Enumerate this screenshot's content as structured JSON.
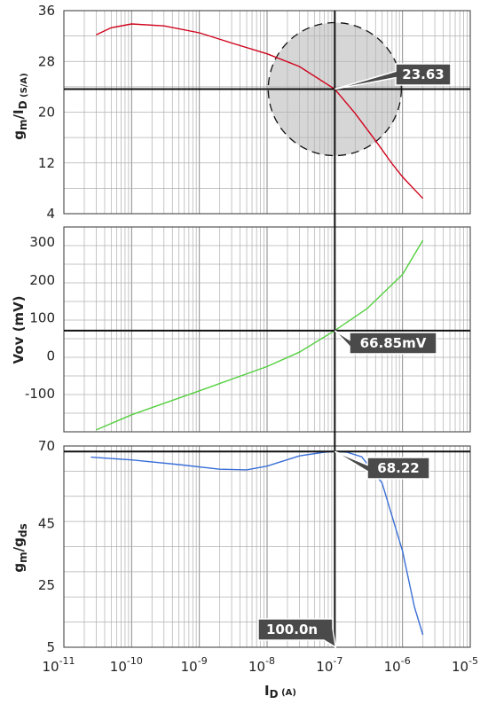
{
  "chart_data": [
    {
      "type": "line",
      "ylabel": "g",
      "ylabel_parts": [
        "g",
        "m",
        "/I",
        "D",
        " (S/A)"
      ],
      "ylim": [
        4,
        36
      ],
      "yticks": [
        "36",
        "28",
        "20",
        "12",
        "4"
      ],
      "ytick_values": [
        36,
        28,
        20,
        12,
        4
      ],
      "x_scale": "log",
      "xlim": [
        1e-11,
        1e-05
      ],
      "series": [
        {
          "color": "#d0021b",
          "x": [
            3e-11,
            5e-11,
            1e-10,
            3e-10,
            1e-09,
            3e-09,
            1e-08,
            3e-08,
            1e-07,
            2e-07,
            4e-07,
            7e-07,
            1e-06,
            1.5e-06,
            2e-06
          ],
          "y": [
            32.2,
            33.3,
            33.9,
            33.6,
            32.5,
            30.9,
            29.2,
            27.2,
            23.63,
            19.8,
            15.5,
            11.9,
            9.8,
            7.8,
            6.4
          ]
        }
      ],
      "marker": {
        "x": 1e-07,
        "y": 23.63,
        "label": "23.63"
      },
      "highlight_circle": true,
      "grid": true
    },
    {
      "type": "line",
      "ylabel": "Vov (mV)",
      "ylim": [
        -200,
        340
      ],
      "yticks": [
        "300",
        "200",
        "100",
        "0",
        "-100"
      ],
      "ytick_values": [
        300,
        200,
        100,
        0,
        -100
      ],
      "x_scale": "log",
      "xlim": [
        1e-11,
        1e-05
      ],
      "series": [
        {
          "color": "#55d040",
          "x": [
            3e-11,
            1e-10,
            1e-09,
            1e-08,
            3e-08,
            1e-07,
            3e-07,
            1e-06,
            2e-06
          ],
          "y": [
            -195,
            -155,
            -92,
            -28,
            10,
            66.85,
            125,
            215,
            305
          ]
        }
      ],
      "marker": {
        "x": 1e-07,
        "y": 66.85,
        "label": "66.85mV"
      },
      "grid": true
    },
    {
      "type": "line",
      "ylabel": "g",
      "ylabel_parts": [
        "g",
        "m",
        "/g",
        "ds"
      ],
      "ylim": [
        5,
        70
      ],
      "yticks": [
        "70",
        "45",
        "25",
        "5"
      ],
      "ytick_values": [
        70,
        45,
        25,
        5
      ],
      "xlabel": "I",
      "xlabel_parts": [
        "I",
        "D",
        " (A)"
      ],
      "x_scale": "log",
      "xlim": [
        1e-11,
        1e-05
      ],
      "xtick_base": "10",
      "xtick_exponents": [
        "-11",
        "-10",
        "-9",
        "-8",
        "-7",
        "-6",
        "-5"
      ],
      "series": [
        {
          "color": "#3a6fd8",
          "x": [
            2.5e-11,
            1e-10,
            5e-10,
            2e-09,
            5e-09,
            1e-08,
            3e-08,
            7e-08,
            1e-07,
            1.5e-07,
            2.5e-07,
            5e-07,
            1e-06,
            1.5e-06,
            2e-06
          ],
          "y": [
            66.4,
            65.5,
            64.0,
            62.5,
            62.3,
            63.5,
            66.8,
            68.0,
            68.22,
            68.0,
            66.5,
            58.0,
            36.0,
            18.0,
            9.0
          ]
        }
      ],
      "marker": {
        "x": 1e-07,
        "y": 68.22,
        "label": "68.22"
      },
      "x_marker_label": "100.0n",
      "grid": true
    }
  ]
}
